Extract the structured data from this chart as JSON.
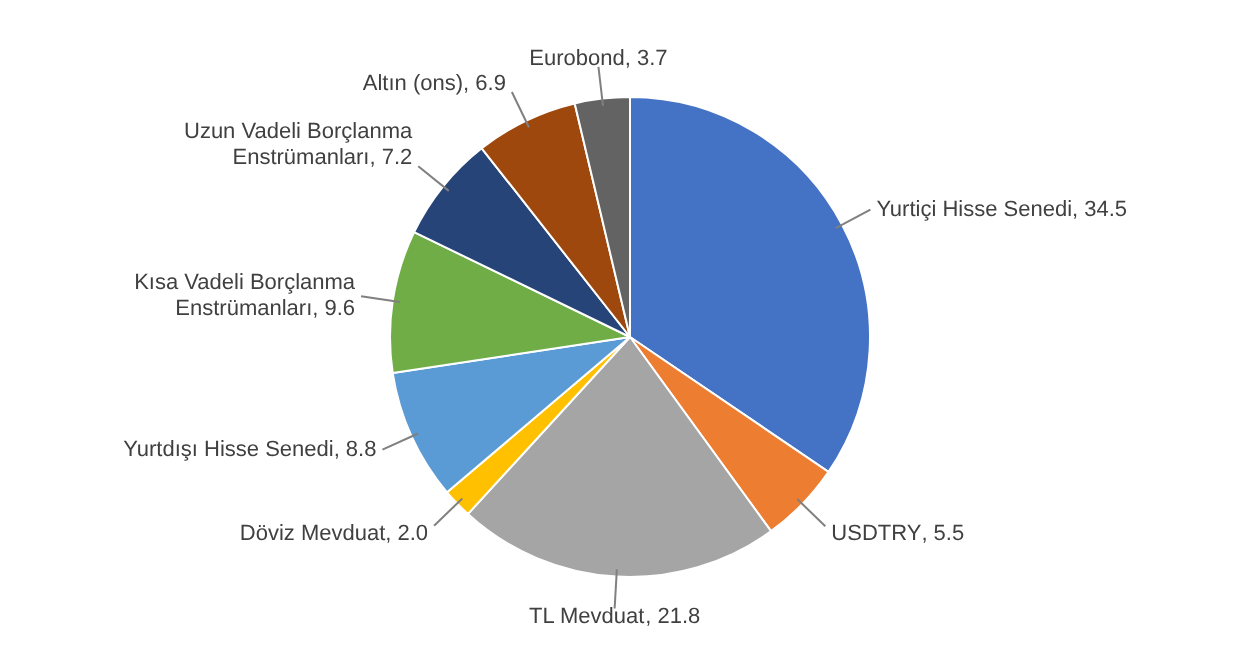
{
  "chart_data": {
    "type": "pie",
    "categories": [
      "Yurtiçi Hisse Senedi",
      "USDTRY",
      "TL Mevduat",
      "Döviz Mevduat",
      "Yurtdışı Hisse Senedi",
      "Kısa Vadeli Borçlanma Enstrümanları",
      "Uzun Vadeli Borçlanma Enstrümanları",
      "Altın (ons)",
      "Eurobond"
    ],
    "values": [
      34.5,
      5.5,
      21.8,
      2.0,
      8.8,
      9.6,
      7.2,
      6.9,
      3.7
    ],
    "value_labels": [
      ", 34.5",
      ", 5.5",
      ", 21.8",
      ", 2.0",
      ", 8.8",
      ", 9.6",
      ", 7.2",
      ", 6.9",
      ", 3.7"
    ],
    "colors": [
      "#4472c4",
      "#ed7d31",
      "#a5a5a5",
      "#ffc000",
      "#5b9bd5",
      "#70ad47",
      "#264478",
      "#9e480e",
      "#636363"
    ],
    "legend": false
  }
}
